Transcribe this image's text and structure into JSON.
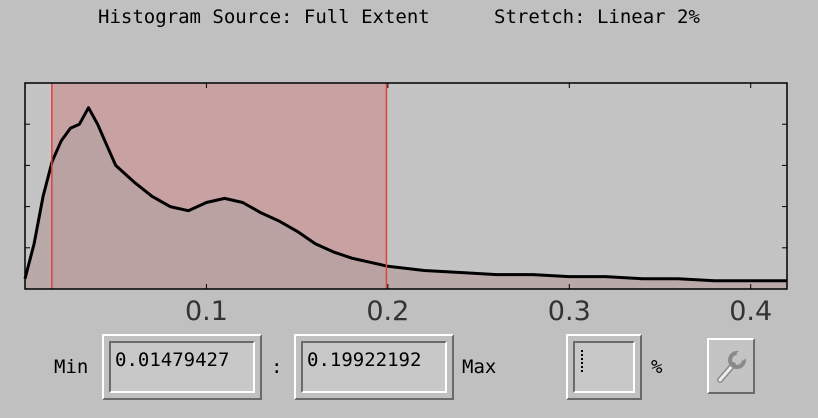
{
  "header": {
    "histogram_source": "Histogram Source: Full Extent",
    "stretch": "Stretch: Linear 2%"
  },
  "controls": {
    "min_label": "Min",
    "min_value": "0.01479427",
    "separator": ":",
    "max_value": "0.19922192",
    "max_label": "Max",
    "percent_value": "",
    "percent_label": "%"
  },
  "icons": {
    "settings": "wrench-icon"
  },
  "colors": {
    "background": "#c0c0c0",
    "selection_fill": "#c8a2a2",
    "selection_edge": "#e04040",
    "histogram_line": "#000000",
    "histogram_fill": "#b8a2a2"
  },
  "chart_data": {
    "type": "area",
    "xlabel": "",
    "ylabel": "",
    "xlim": [
      0.0,
      0.42
    ],
    "ylim": [
      0,
      1.0
    ],
    "x_ticks": [
      0.1,
      0.2,
      0.3,
      0.4
    ],
    "x_tick_labels": [
      "0.1",
      "0.2",
      "0.3",
      "0.4"
    ],
    "selected_range": [
      0.01479427,
      0.19922192
    ],
    "grid": false,
    "x": [
      0.0,
      0.005,
      0.01,
      0.015,
      0.02,
      0.025,
      0.03,
      0.035,
      0.04,
      0.045,
      0.05,
      0.06,
      0.07,
      0.08,
      0.09,
      0.1,
      0.11,
      0.12,
      0.13,
      0.14,
      0.15,
      0.16,
      0.17,
      0.18,
      0.19,
      0.2,
      0.22,
      0.24,
      0.26,
      0.28,
      0.3,
      0.32,
      0.34,
      0.36,
      0.38,
      0.4,
      0.42
    ],
    "values": [
      0.05,
      0.22,
      0.45,
      0.62,
      0.72,
      0.78,
      0.8,
      0.88,
      0.8,
      0.7,
      0.6,
      0.52,
      0.45,
      0.4,
      0.38,
      0.42,
      0.44,
      0.42,
      0.37,
      0.33,
      0.28,
      0.22,
      0.18,
      0.15,
      0.13,
      0.11,
      0.09,
      0.08,
      0.07,
      0.07,
      0.06,
      0.06,
      0.05,
      0.05,
      0.04,
      0.04,
      0.04
    ]
  }
}
